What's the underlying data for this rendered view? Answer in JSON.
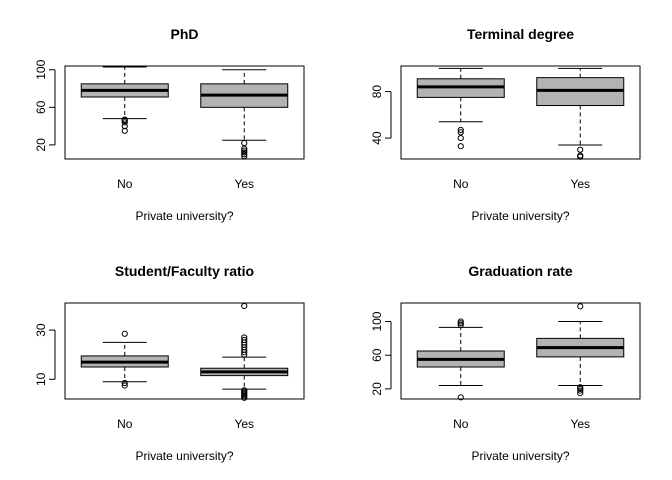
{
  "chart_data": [
    {
      "type": "boxplot",
      "title": "PhD",
      "xlabel": "Private university?",
      "ylabel": "",
      "categories": [
        "No",
        "Yes"
      ],
      "ylim": [
        5,
        104
      ],
      "yticks": [
        20,
        60,
        100
      ],
      "grid": false,
      "boxes": [
        {
          "category": "No",
          "whisker_low": 48,
          "q1": 71,
          "median": 78,
          "q3": 85,
          "whisker_high": 103,
          "outliers": [
            35,
            40,
            44,
            46,
            47
          ]
        },
        {
          "category": "Yes",
          "whisker_low": 25,
          "q1": 60,
          "median": 73,
          "q3": 85,
          "whisker_high": 100,
          "outliers": [
            8,
            10,
            12,
            14,
            16,
            22
          ]
        }
      ]
    },
    {
      "type": "boxplot",
      "title": "Terminal degree",
      "xlabel": "Private university?",
      "ylabel": "",
      "categories": [
        "No",
        "Yes"
      ],
      "ylim": [
        22,
        102
      ],
      "yticks": [
        40,
        80
      ],
      "grid": false,
      "boxes": [
        {
          "category": "No",
          "whisker_low": 54,
          "q1": 75,
          "median": 84,
          "q3": 91,
          "whisker_high": 100,
          "outliers": [
            33,
            40,
            45,
            47
          ]
        },
        {
          "category": "Yes",
          "whisker_low": 34,
          "q1": 68,
          "median": 81,
          "q3": 92,
          "whisker_high": 100,
          "outliers": [
            24,
            25,
            30
          ]
        }
      ]
    },
    {
      "type": "boxplot",
      "title": "Student/Faculty ratio",
      "xlabel": "Private university?",
      "ylabel": "",
      "categories": [
        "No",
        "Yes"
      ],
      "ylim": [
        2,
        41
      ],
      "yticks": [
        10,
        30
      ],
      "grid": false,
      "boxes": [
        {
          "category": "No",
          "whisker_low": 9,
          "q1": 15,
          "median": 17,
          "q3": 19.5,
          "whisker_high": 25,
          "outliers": [
            7.5,
            8.5,
            28.5
          ]
        },
        {
          "category": "Yes",
          "whisker_low": 6,
          "q1": 11.5,
          "median": 13,
          "q3": 14.5,
          "whisker_high": 19,
          "outliers": [
            2.5,
            3,
            3.5,
            4,
            4.5,
            5,
            5.5,
            20,
            21,
            22,
            23,
            24,
            25,
            26,
            27,
            39.8
          ]
        }
      ]
    },
    {
      "type": "boxplot",
      "title": "Graduation rate",
      "xlabel": "Private university?",
      "ylabel": "",
      "categories": [
        "No",
        "Yes"
      ],
      "ylim": [
        8,
        122
      ],
      "yticks": [
        20,
        60,
        100
      ],
      "grid": false,
      "boxes": [
        {
          "category": "No",
          "whisker_low": 24,
          "q1": 46,
          "median": 55,
          "q3": 65,
          "whisker_high": 93,
          "outliers": [
            10,
            96,
            98,
            100
          ]
        },
        {
          "category": "Yes",
          "whisker_low": 24,
          "q1": 58,
          "median": 69,
          "q3": 80,
          "whisker_high": 100,
          "outliers": [
            15,
            18,
            20,
            22,
            118
          ]
        }
      ]
    }
  ]
}
